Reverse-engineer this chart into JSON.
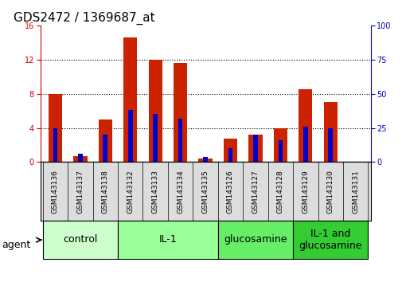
{
  "title": "GDS2472 / 1369687_at",
  "samples": [
    "GSM143136",
    "GSM143137",
    "GSM143138",
    "GSM143132",
    "GSM143133",
    "GSM143134",
    "GSM143135",
    "GSM143126",
    "GSM143127",
    "GSM143128",
    "GSM143129",
    "GSM143130",
    "GSM143131"
  ],
  "count_values": [
    8.0,
    0.7,
    5.0,
    14.6,
    12.0,
    11.6,
    0.45,
    2.7,
    3.2,
    4.0,
    8.5,
    7.0,
    0.0
  ],
  "percentile_values": [
    25.0,
    6.0,
    20.0,
    38.0,
    35.0,
    32.0,
    4.0,
    10.0,
    20.0,
    16.0,
    26.0,
    25.0,
    0.0
  ],
  "groups": [
    {
      "label": "control",
      "start": 0,
      "end": 3,
      "color": "#ccffcc"
    },
    {
      "label": "IL-1",
      "start": 3,
      "end": 7,
      "color": "#99ff99"
    },
    {
      "label": "glucosamine",
      "start": 7,
      "end": 10,
      "color": "#66ee66"
    },
    {
      "label": "IL-1 and\nglucosamine",
      "start": 10,
      "end": 13,
      "color": "#33cc33"
    }
  ],
  "ylim_left": [
    0,
    16
  ],
  "ylim_right": [
    0,
    100
  ],
  "yticks_left": [
    0,
    4,
    8,
    12,
    16
  ],
  "yticks_right": [
    0,
    25,
    50,
    75,
    100
  ],
  "bar_color_red": "#cc2200",
  "bar_color_blue": "#0000cc",
  "bar_width": 0.55,
  "blue_bar_width": 0.18,
  "bg_color": "#ffffff",
  "plot_bg_color": "#ffffff",
  "left_tick_color": "#cc0000",
  "right_tick_color": "#0000bb",
  "title_fontsize": 11,
  "tick_fontsize": 7,
  "sample_fontsize": 6.5,
  "group_label_fontsize": 9,
  "agent_label": "agent",
  "legend_fontsize": 8
}
